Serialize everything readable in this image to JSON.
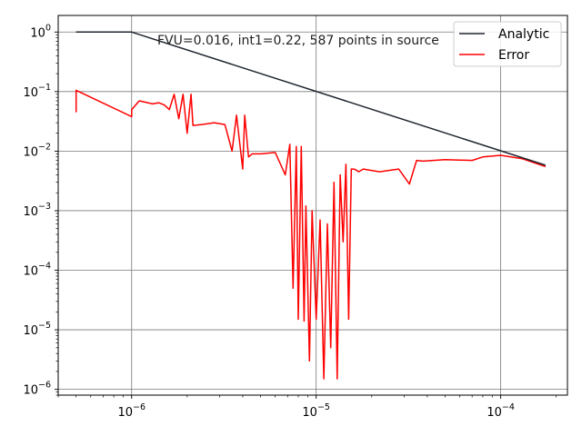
{
  "chart_data": {
    "type": "line",
    "x_scale": "log",
    "y_scale": "log",
    "xlim": [
      4e-07,
      0.00023
    ],
    "ylim": [
      8e-07,
      1.9
    ],
    "grid": true,
    "legend_position": "top-right",
    "annotation": "FVU=0.016, int1=0.22, 587 points in source",
    "x_ticks": [
      {
        "value": 1e-06,
        "base": "10",
        "exp": "−6"
      },
      {
        "value": 1e-05,
        "base": "10",
        "exp": "−5"
      },
      {
        "value": 0.0001,
        "base": "10",
        "exp": "−4"
      }
    ],
    "y_ticks": [
      {
        "value": 1,
        "base": "10",
        "exp": "0"
      },
      {
        "value": 0.1,
        "base": "10",
        "exp": "−1"
      },
      {
        "value": 0.01,
        "base": "10",
        "exp": "−2"
      },
      {
        "value": 0.001,
        "base": "10",
        "exp": "−3"
      },
      {
        "value": 0.0001,
        "base": "10",
        "exp": "−4"
      },
      {
        "value": 1e-05,
        "base": "10",
        "exp": "−5"
      },
      {
        "value": 1e-06,
        "base": "10",
        "exp": "−6"
      }
    ],
    "series": [
      {
        "name": "Analytic",
        "color": "#1f2530",
        "x": [
          5e-07,
          1e-06,
          0.000175
        ],
        "y": [
          1.0,
          1.0,
          0.0058
        ]
      },
      {
        "name": "Error",
        "color": "#ff0000",
        "x": [
          5e-07,
          5e-07,
          5e-07,
          1e-06,
          1e-06,
          1.1e-06,
          1.3e-06,
          1.4e-06,
          1.5e-06,
          1.6e-06,
          1.7e-06,
          1.8e-06,
          1.9e-06,
          2e-06,
          2.1e-06,
          2.15e-06,
          2.4e-06,
          2.8e-06,
          3.2e-06,
          3.5e-06,
          3.7e-06,
          4e-06,
          4.1e-06,
          4.3e-06,
          4.5e-06,
          5e-06,
          6e-06,
          6.8e-06,
          7.2e-06,
          7.5e-06,
          7.8e-06,
          8e-06,
          8.3e-06,
          8.6e-06,
          8.8e-06,
          9.2e-06,
          9.5e-06,
          1e-05,
          1.05e-05,
          1.1e-05,
          1.15e-05,
          1.2e-05,
          1.25e-05,
          1.3e-05,
          1.35e-05,
          1.4e-05,
          1.45e-05,
          1.5e-05,
          1.55e-05,
          1.6e-05,
          1.65e-05,
          1.7e-05,
          1.8e-05,
          2.2e-05,
          2.8e-05,
          3.2e-05,
          3.5e-05,
          3.8e-05,
          5e-05,
          7e-05,
          8e-05,
          0.0001,
          0.00013,
          0.000175
        ],
        "y": [
          0.045,
          0.07,
          0.105,
          0.038,
          0.05,
          0.07,
          0.062,
          0.065,
          0.06,
          0.05,
          0.09,
          0.035,
          0.09,
          0.02,
          0.09,
          0.027,
          0.028,
          0.03,
          0.028,
          0.01,
          0.04,
          0.005,
          0.04,
          0.008,
          0.009,
          0.009,
          0.0095,
          0.004,
          0.013,
          5e-05,
          0.012,
          1.5e-05,
          0.012,
          1.4e-05,
          0.0012,
          3e-06,
          0.001,
          1.5e-05,
          0.0007,
          1.5e-06,
          0.0006,
          5e-06,
          0.003,
          1.5e-06,
          0.004,
          0.0003,
          0.006,
          1.5e-05,
          0.005,
          0.005,
          0.0048,
          0.0045,
          0.005,
          0.0045,
          0.005,
          0.0028,
          0.007,
          0.0068,
          0.0072,
          0.007,
          0.008,
          0.0085,
          0.0075,
          0.0055
        ]
      }
    ]
  }
}
